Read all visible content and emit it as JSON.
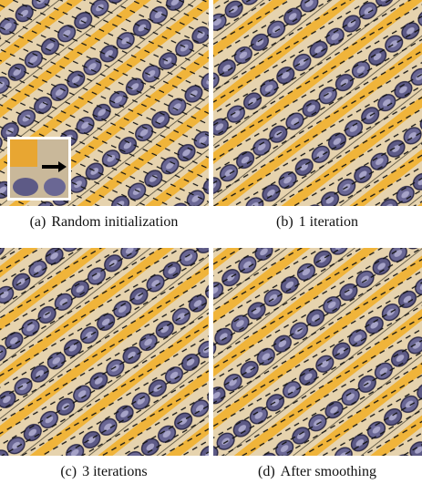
{
  "panels": [
    {
      "label": "(a)",
      "caption": "Random initialization"
    },
    {
      "label": "(b)",
      "caption": "1 iteration"
    },
    {
      "label": "(c)",
      "caption": "3 iterations"
    },
    {
      "label": "(d)",
      "caption": "After smoothing"
    }
  ]
}
